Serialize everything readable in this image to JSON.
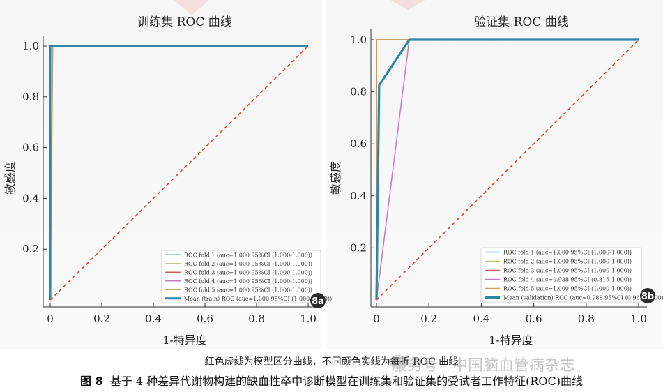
{
  "chart_data": [
    {
      "type": "line",
      "title": "训练集 ROC 曲线",
      "xlabel": "1-特异度",
      "ylabel": "敏感度",
      "xlim": [
        0,
        1
      ],
      "ylim": [
        0,
        1
      ],
      "x_ticks": [
        0,
        0.2,
        0.4,
        0.6,
        0.8,
        1.0
      ],
      "x_tick_labels": [
        "0",
        "0.2",
        "0.4",
        "0.6",
        "0.8",
        "1.0"
      ],
      "y_ticks": [
        0.2,
        0.4,
        0.6,
        0.8,
        1.0
      ],
      "y_tick_labels": [
        "0.2",
        "0.4",
        "0.6",
        "0.8",
        "1.0"
      ],
      "grid": false,
      "legend_position": "bottom-right",
      "panel_label": "8a",
      "series": [
        {
          "name": "ROC fold   1 (auc=1.000 95%CI (1.000-1.000))",
          "color": "#6fa8c8",
          "x": [
            0,
            0,
            0.01,
            1
          ],
          "y": [
            0,
            1,
            1,
            1
          ]
        },
        {
          "name": "ROC fold   2 (auc=1.000 95%CI (1.000-1.000))",
          "color": "#c9c48a",
          "x": [
            0,
            0,
            0.01,
            1
          ],
          "y": [
            0,
            1,
            1,
            1
          ]
        },
        {
          "name": "ROC fold   3 (auc=1.000 95%CI (1.000-1.000))",
          "color": "#c7655f",
          "x": [
            0,
            0,
            0.01,
            1
          ],
          "y": [
            0,
            1,
            1,
            1
          ]
        },
        {
          "name": "ROC fold   4 (auc=1.000 95%CI (1.000-1.000))",
          "color": "#c77fb6",
          "x": [
            0,
            0,
            0.01,
            1
          ],
          "y": [
            0,
            1,
            1,
            1
          ]
        },
        {
          "name": "ROC fold   5 (auc=1.000 95%CI (1.000-1.000))",
          "color": "#c9a15a",
          "x": [
            0,
            0.01,
            0.015,
            1
          ],
          "y": [
            0,
            1,
            1,
            1
          ]
        },
        {
          "name": "Mean (train) ROC (auc=1.000 95%CI (1.000-1.000))",
          "color": "#2e86ab",
          "x": [
            0,
            0,
            0.01,
            1
          ],
          "y": [
            0,
            1,
            1,
            1
          ],
          "bold": true
        },
        {
          "color": "#e0442e",
          "x": [
            0,
            1
          ],
          "y": [
            0,
            1
          ],
          "dashed": true
        }
      ]
    },
    {
      "type": "line",
      "title": "验证集 ROC 曲线",
      "xlabel": "1-特异度",
      "ylabel": "敏感度",
      "xlim": [
        0,
        1
      ],
      "ylim": [
        0,
        1
      ],
      "x_ticks": [
        0,
        0.2,
        0.4,
        0.6,
        0.8,
        1.0
      ],
      "x_tick_labels": [
        "0",
        "0.2",
        "0.4",
        "0.6",
        "0.8",
        "1.0"
      ],
      "y_ticks": [
        0.2,
        0.4,
        0.6,
        0.8,
        1.0
      ],
      "y_tick_labels": [
        "0.2",
        "0.4",
        "0.6",
        "0.8",
        "1.0"
      ],
      "grid": false,
      "legend_position": "bottom-right",
      "panel_label": "8b",
      "series": [
        {
          "name": "ROC fold   1 (auc=1.000 95%CI (1.000-1.000))",
          "color": "#6fa8c8",
          "x": [
            0,
            0,
            0.01,
            1
          ],
          "y": [
            0,
            1,
            1,
            1
          ]
        },
        {
          "name": "ROC fold   2 (auc=1.000 95%CI (1.000-1.000))",
          "color": "#c9c48a",
          "x": [
            0,
            0,
            0.01,
            1
          ],
          "y": [
            0,
            1,
            1,
            1
          ]
        },
        {
          "name": "ROC fold   3 (auc=1.000 95%CI (1.000-1.000))",
          "color": "#c7655f",
          "x": [
            0,
            0,
            0.01,
            1
          ],
          "y": [
            0,
            1,
            1,
            1
          ]
        },
        {
          "name": "ROC fold   4 (auc=0.938 95%CI (0.815-1.000))",
          "color": "#c77fb6",
          "x": [
            0,
            0.125,
            1
          ],
          "y": [
            0,
            1,
            1
          ]
        },
        {
          "name": "ROC fold   5 (auc=1.000 95%CI (1.000-1.000))",
          "color": "#c9a15a",
          "x": [
            0,
            0,
            0.01,
            1
          ],
          "y": [
            0,
            1,
            1,
            1
          ]
        },
        {
          "name": "Mean (validation) ROC (auc=0.988 95%CI (0.963-1.000))",
          "color": "#2e86ab",
          "x": [
            0,
            0.01,
            0.125,
            1
          ],
          "y": [
            0,
            0.825,
            1,
            1
          ],
          "bold": true
        },
        {
          "color": "#e0442e",
          "x": [
            0,
            1
          ],
          "y": [
            0,
            1
          ],
          "dashed": true
        }
      ]
    }
  ],
  "figure": {
    "note": "红色虚线为模型区分曲线，不同颜色实线为每折 ROC 曲线",
    "caption_label": "图 8",
    "caption_text": "基于 4 种差异代谢物构建的缺血性卒中诊断模型在训练集和验证集的受试者工作特征(ROC)曲线",
    "watermark": "服务号 · 中国脑血管病杂志"
  }
}
